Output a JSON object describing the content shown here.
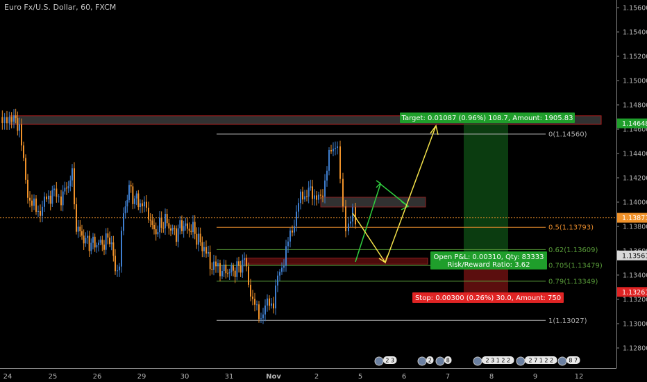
{
  "header": {
    "title": "Euro Fx/U.S. Dollar, 60, FXCM"
  },
  "chart_data": {
    "type": "candlestick",
    "y_range": [
      1.1272,
      1.1562
    ],
    "y_ticks": [
      "1.15600",
      "1.15400",
      "1.15200",
      "1.15000",
      "1.14800",
      "1.14600",
      "1.14400",
      "1.14200",
      "1.14000",
      "1.13800",
      "1.13600",
      "1.13400",
      "1.13200",
      "1.13000",
      "1.12800"
    ],
    "x_ticks": [
      "24",
      "25",
      "26",
      "29",
      "30",
      "31",
      "Nov",
      "2",
      "5",
      "6",
      "7",
      "8",
      "9",
      "12"
    ],
    "price_tags": [
      {
        "label": "1.14648",
        "value": 1.14648,
        "color": "#1f9e2b"
      },
      {
        "label": "1.13871",
        "value": 1.13871,
        "color": "#f0922a"
      },
      {
        "label": "1.13561",
        "value": 1.13561,
        "color": "#d8d8d8"
      },
      {
        "label": "1.13261",
        "value": 1.13261,
        "color": "#e02424"
      }
    ],
    "fib_levels": [
      {
        "label": "0(1.14560)",
        "value": 1.1456,
        "color": "#b0b0b0"
      },
      {
        "label": "0.5(1.13793)",
        "value": 1.13793,
        "color": "#e58a2c"
      },
      {
        "label": "0.62(1.13609)",
        "value": 1.13609,
        "color": "#5a9e3a"
      },
      {
        "label": "0.705(1.13479)",
        "value": 1.13479,
        "color": "#5a9e3a"
      },
      {
        "label": "0.79(1.13349)",
        "value": 1.13349,
        "color": "#5a9e3a"
      },
      {
        "label": "1(1.13027)",
        "value": 1.13027,
        "color": "#b0b0b0"
      }
    ],
    "position": {
      "target_text": "Target: 0.01087 (0.96%) 108.7, Amount: 1905.83",
      "open_pl_text": "Open P&L: 0.00310, Qty: 83333",
      "rr_text": "Risk/Reward Ratio: 3.62",
      "stop_text": "Stop: 0.00300 (0.26%) 30.0, Amount: 750",
      "entry": 1.13561,
      "target": 1.14648,
      "stop": 1.13261
    },
    "zones": [
      {
        "top": 1.1471,
        "bottom": 1.1464
      },
      {
        "top": 1.1404,
        "bottom": 1.1396
      },
      {
        "top": 1.1354,
        "bottom": 1.1349
      }
    ],
    "events": [
      "2 3",
      "2",
      "2",
      "8",
      "2 3 1 2 2",
      "2 7 1 2 2",
      "8 7"
    ],
    "colors": {
      "up": "#3f7fd0",
      "down": "#f0922a",
      "current": "#f0922a"
    }
  }
}
